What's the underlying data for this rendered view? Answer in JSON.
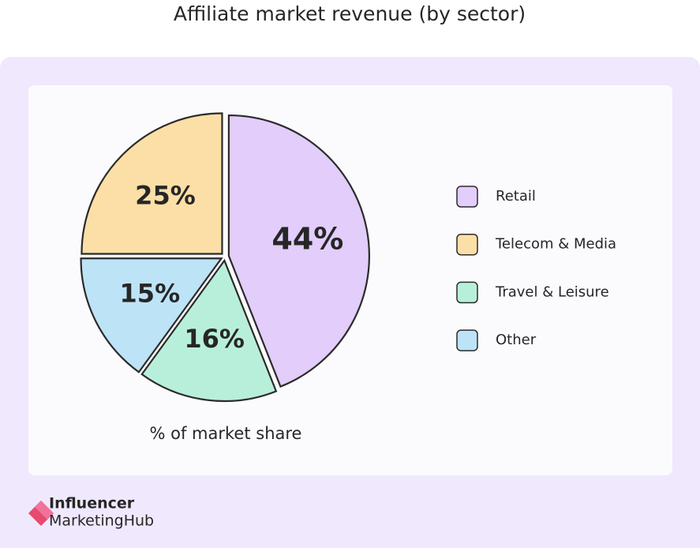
{
  "chart_data": {
    "type": "pie",
    "title": "Affiliate market revenue (by sector)",
    "xlabel": "% of market share",
    "categories": [
      "Retail",
      "Telecom & Media",
      "Travel & Leisure",
      "Other"
    ],
    "values": [
      44,
      25,
      16,
      15
    ],
    "value_labels": [
      "44%",
      "25%",
      "16%",
      "15%"
    ],
    "colors": [
      "#e2cdfb",
      "#fbdfa6",
      "#b8efdb",
      "#bde3f6"
    ],
    "legend": "right"
  },
  "logo": {
    "line1": "Influencer",
    "line2": "MarketingHub"
  }
}
